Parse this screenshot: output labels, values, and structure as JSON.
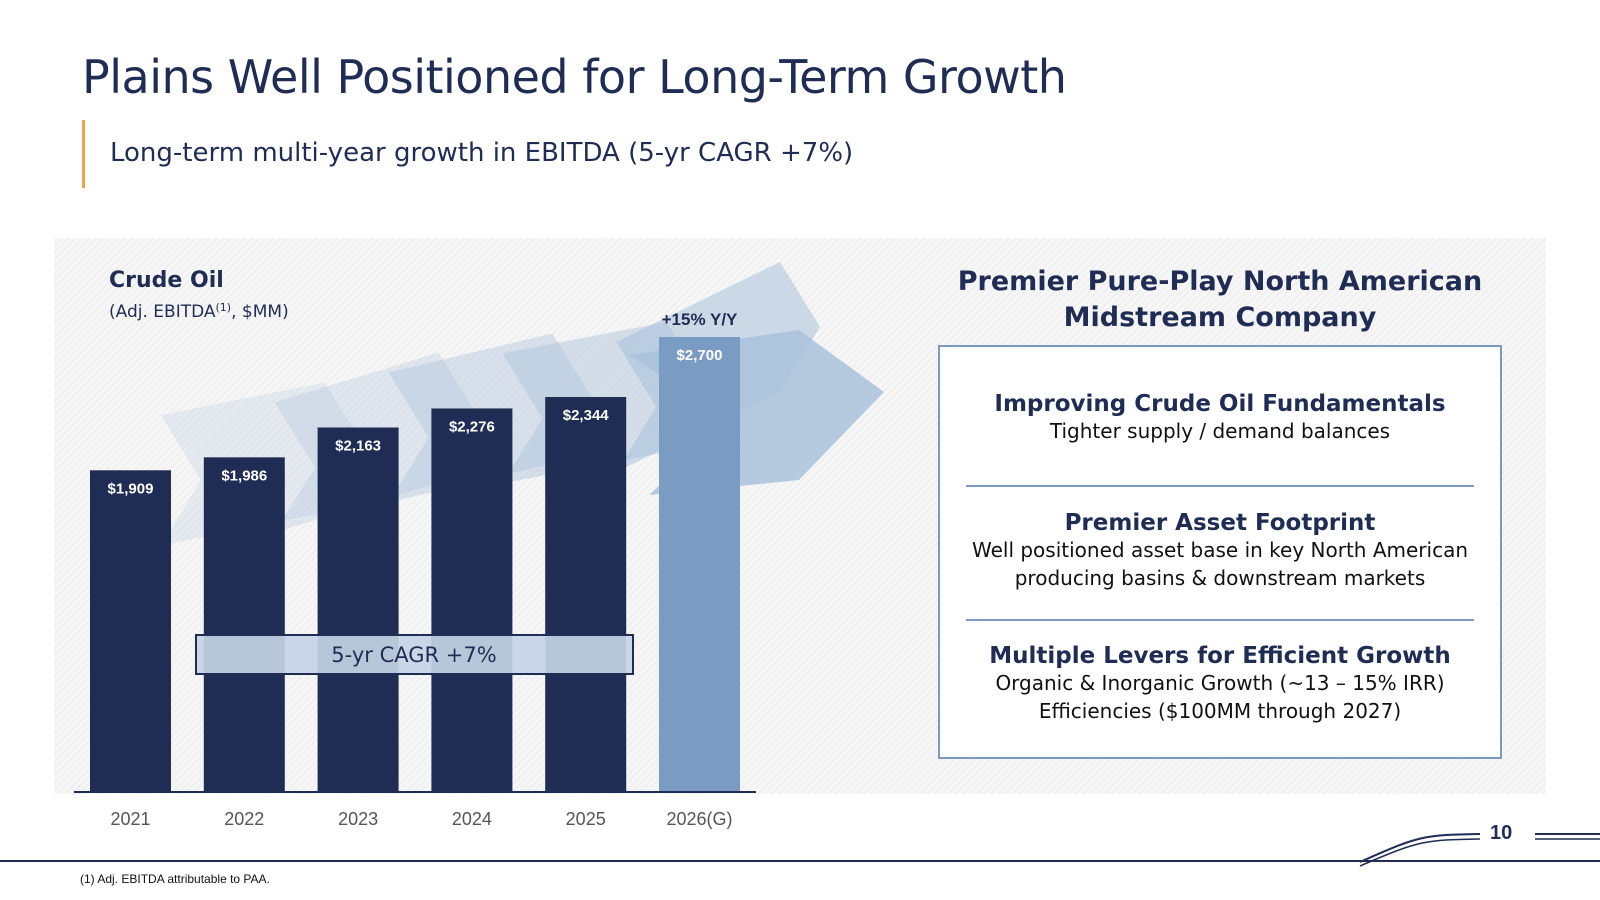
{
  "slide": {
    "title": "Plains Well Positioned for Long-Term Growth",
    "subtitle": "Long-term multi-year growth in EBITDA (5-yr CAGR +7%)",
    "page_number": "10",
    "footnote": "(1) Adj. EBITDA attributable to PAA."
  },
  "chart_data": {
    "type": "bar",
    "title": "Crude Oil",
    "subtitle_prefix": "(Adj. EBITDA",
    "subtitle_sup": "(1)",
    "subtitle_suffix": ", $MM)",
    "categories": [
      "2021",
      "2022",
      "2023",
      "2024",
      "2025",
      "2026(G)"
    ],
    "values": [
      1909,
      1986,
      2163,
      2276,
      2344,
      2700
    ],
    "value_labels": [
      "$1,909",
      "$1,986",
      "$2,163",
      "$2,276",
      "$2,344",
      "$2,700"
    ],
    "highlight_index": 5,
    "highlight_label": "+15% Y/Y",
    "cagr_label": "5-yr CAGR +7%",
    "colors": {
      "bar": "#1f2d55",
      "highlight_bar": "#7a9bc2",
      "arrow": "#a9c1da",
      "axis_text": "#555555"
    }
  },
  "right_panel": {
    "title_line1": "Premier Pure-Play North American",
    "title_line2": "Midstream Company",
    "sections": [
      {
        "heading": "Improving Crude Oil Fundamentals",
        "lines": [
          "Tighter supply / demand balances"
        ]
      },
      {
        "heading": "Premier Asset Footprint",
        "lines": [
          "Well positioned asset base in key North American",
          "producing basins & downstream markets"
        ]
      },
      {
        "heading": "Multiple Levers for Efficient Growth",
        "lines": [
          "Organic & Inorganic Growth (~13 – 15% IRR)",
          "Efficiencies ($100MM through 2027)"
        ]
      }
    ]
  }
}
